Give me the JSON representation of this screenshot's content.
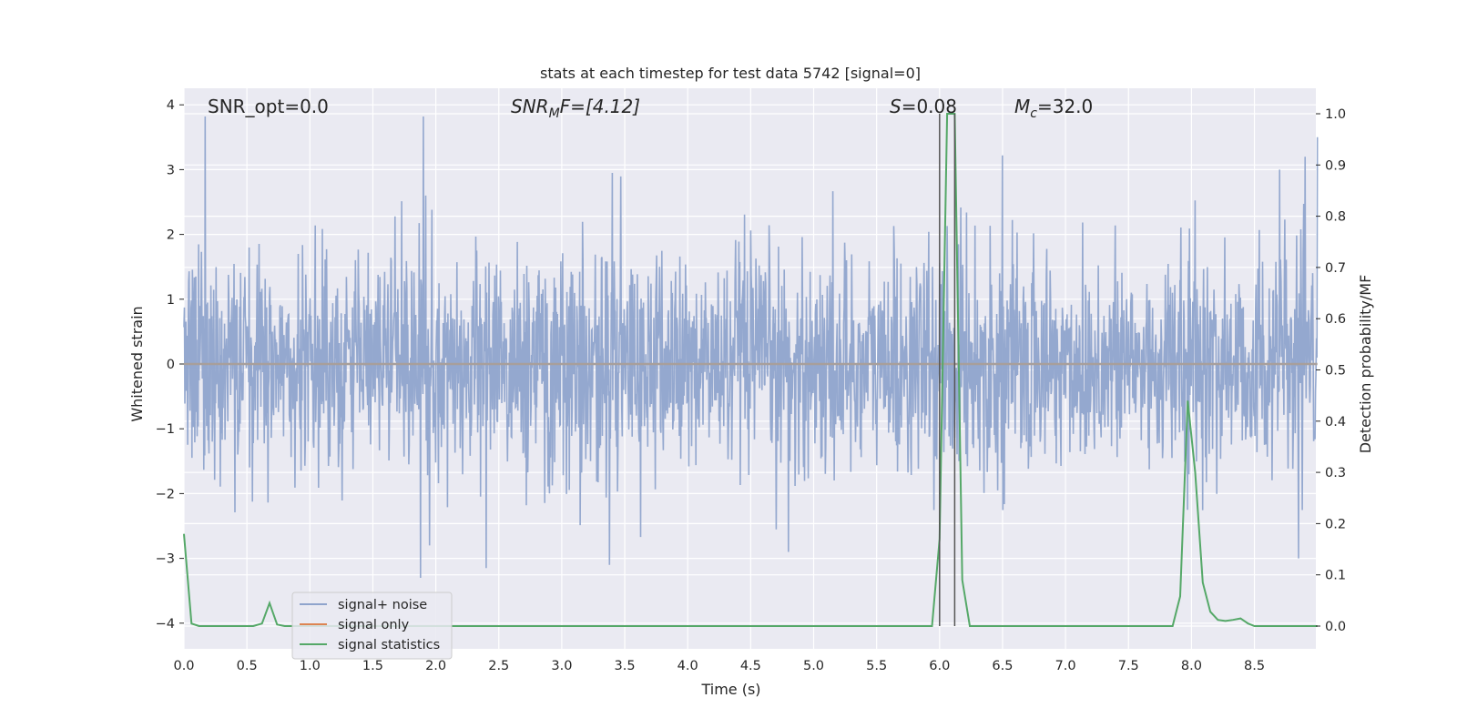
{
  "chart_data": {
    "type": "line",
    "title": "stats at each timestep for test data 5742 [signal=0]",
    "xlabel": "Time (s)",
    "ylabel": "Whitened strain",
    "y2label": "Detection probability/MF",
    "xlim": [
      0.0,
      9.0
    ],
    "ylim": [
      -4.2,
      4.2
    ],
    "y2lim": [
      -0.05,
      1.045
    ],
    "xticks": [
      "0.0",
      "0.5",
      "1.0",
      "1.5",
      "2.0",
      "2.5",
      "3.0",
      "3.5",
      "4.0",
      "4.5",
      "5.0",
      "5.5",
      "6.0",
      "6.5",
      "7.0",
      "7.5",
      "8.0",
      "8.5"
    ],
    "xtick_values": [
      0.0,
      0.5,
      1.0,
      1.5,
      2.0,
      2.5,
      3.0,
      3.5,
      4.0,
      4.5,
      5.0,
      5.5,
      6.0,
      6.5,
      7.0,
      7.5,
      8.0,
      8.5
    ],
    "yticks": [
      "4",
      "3",
      "2",
      "1",
      "0",
      "−1",
      "−2",
      "−3",
      "−4"
    ],
    "ytick_values": [
      4,
      3,
      2,
      1,
      0,
      -1,
      -2,
      -3,
      -4
    ],
    "y2ticks": [
      "1.0",
      "0.9",
      "0.8",
      "0.7",
      "0.6",
      "0.5",
      "0.4",
      "0.3",
      "0.2",
      "0.1",
      "0.0"
    ],
    "y2tick_values": [
      1.0,
      0.9,
      0.8,
      0.7,
      0.6,
      0.5,
      0.4,
      0.3,
      0.2,
      0.1,
      0.0
    ],
    "grid": true,
    "legend_position": "lower-left",
    "annotations": {
      "snr_opt": "SNR_opt=0.0",
      "snr_mf_main": "SNR",
      "snr_mf_sub": "M",
      "snr_mf_rest": "F=[4.12]",
      "s_main": "S",
      "s_rest": "=0.08",
      "mc_main": "M",
      "mc_sub": "c",
      "mc_rest": "=32.0"
    },
    "vlines_x": [
      6.0,
      6.12
    ],
    "series": [
      {
        "name": "signal+ noise",
        "color": "#8fa4cc",
        "axis": "left",
        "style": "noise",
        "noise_sigma": 0.85,
        "spikes": [
          [
            0.17,
            3.82
          ],
          [
            1.9,
            3.82
          ],
          [
            1.92,
            2.6
          ],
          [
            1.88,
            -3.3
          ],
          [
            1.95,
            -2.8
          ],
          [
            3.4,
            2.95
          ],
          [
            3.38,
            -3.1
          ],
          [
            6.5,
            3.22
          ],
          [
            8.7,
            3.0
          ],
          [
            9.0,
            3.5
          ],
          [
            2.4,
            -3.15
          ],
          [
            4.8,
            -2.9
          ],
          [
            8.85,
            -3.0
          ]
        ]
      },
      {
        "name": "signal only",
        "color": "#dd8452",
        "axis": "left",
        "style": "line",
        "x": [
          0.0,
          9.0
        ],
        "y": [
          0.0,
          0.0
        ]
      },
      {
        "name": "signal statistics",
        "color": "#55a868",
        "axis": "right",
        "style": "line",
        "x": [
          0.0,
          0.06,
          0.12,
          0.5,
          0.55,
          0.62,
          0.68,
          0.74,
          0.8,
          1.0,
          5.9,
          5.94,
          6.0,
          6.06,
          6.12,
          6.18,
          6.24,
          6.3,
          7.8,
          7.85,
          7.91,
          7.97,
          8.03,
          8.09,
          8.15,
          8.21,
          8.27,
          8.33,
          8.39,
          8.45,
          8.5,
          9.0
        ],
        "y": [
          0.18,
          0.005,
          0.0,
          0.0,
          0.0,
          0.005,
          0.045,
          0.003,
          0.0,
          0.0,
          0.0,
          0.0,
          0.17,
          1.0,
          1.0,
          0.09,
          0.0,
          0.0,
          0.0,
          0.0,
          0.058,
          0.44,
          0.3,
          0.085,
          0.028,
          0.012,
          0.01,
          0.012,
          0.015,
          0.005,
          0.0,
          0.0
        ]
      }
    ]
  }
}
